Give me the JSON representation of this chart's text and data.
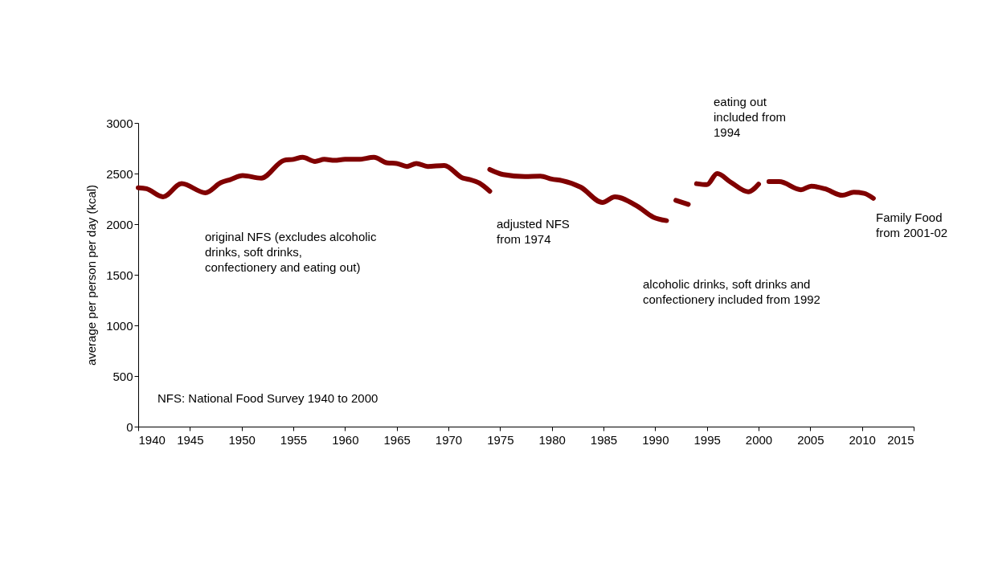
{
  "chart_data": {
    "type": "line",
    "ylabel": "average per person per day  (kcal)",
    "xlim": [
      1940,
      2015
    ],
    "xticks": [
      1940,
      1945,
      1950,
      1955,
      1960,
      1965,
      1970,
      1975,
      1980,
      1985,
      1990,
      1995,
      2000,
      2005,
      2010,
      2015
    ],
    "ylim": [
      0,
      3000
    ],
    "yticks": [
      0,
      500,
      1000,
      1500,
      2000,
      2500,
      3000
    ],
    "grid": false,
    "legend": false,
    "marker": "none",
    "line_style": "solid",
    "series": [
      {
        "color": "#800000",
        "x": [
          1940,
          1940.8,
          1942.4,
          1944.2,
          1946.5,
          1948,
          1948.9,
          1950.1,
          1951.9,
          1954.1,
          1955,
          1955.9,
          1957.1,
          1958,
          1959,
          1960,
          1961.3,
          1962.8,
          1964.1,
          1965,
          1966,
          1966.9,
          1968,
          1969.6,
          1971.4,
          1972.1,
          1973,
          1974
        ],
        "values": [
          2360,
          2350,
          2270,
          2400,
          2310,
          2410,
          2440,
          2480,
          2455,
          2630,
          2640,
          2660,
          2620,
          2640,
          2630,
          2640,
          2640,
          2660,
          2605,
          2600,
          2570,
          2600,
          2570,
          2580,
          2455,
          2440,
          2405,
          2325
        ]
      },
      {
        "color": "#800000",
        "x": [
          1974,
          1975.3,
          1977.4,
          1978.9,
          1980,
          1981,
          1982.8,
          1984.9,
          1986.1,
          1988.3,
          1989.8,
          1991.1
        ],
        "values": [
          2540,
          2490,
          2470,
          2475,
          2445,
          2430,
          2365,
          2215,
          2270,
          2175,
          2070,
          2035
        ]
      },
      {
        "color": "#800000",
        "x": [
          1992,
          1993.2
        ],
        "values": [
          2235,
          2195
        ]
      },
      {
        "color": "#800000",
        "x": [
          1994,
          1995,
          1996,
          1997.3,
          1999,
          2000
        ],
        "values": [
          2400,
          2390,
          2500,
          2415,
          2320,
          2395
        ]
      },
      {
        "color": "#800000",
        "x": [
          2001,
          2002,
          2004.1,
          2005.1,
          2006.4,
          2008.1,
          2009.2,
          2010.2,
          2011.1
        ],
        "values": [
          2420,
          2420,
          2340,
          2375,
          2350,
          2285,
          2315,
          2305,
          2255
        ]
      }
    ],
    "annotations": [
      "original NFS (excludes alcoholic\ndrinks, soft drinks,\nconfectionery and eating out)",
      "adjusted NFS\nfrom 1974",
      "alcoholic drinks, soft drinks and\nconfectionery included from 1992",
      "eating out\nincluded from\n1994",
      "Family Food\nfrom 2001-02",
      "NFS: National Food Survey 1940 to 2000"
    ]
  }
}
